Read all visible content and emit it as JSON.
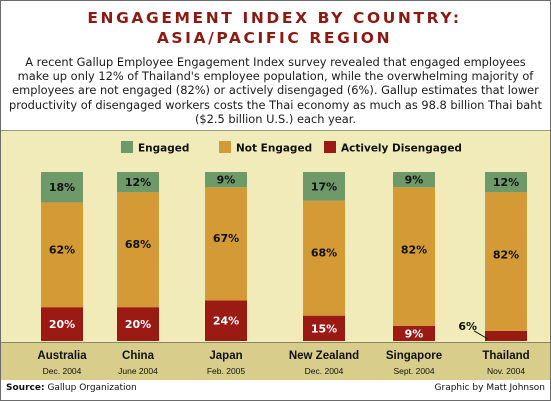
{
  "title_line1": "ENGAGEMENT INDEX BY COUNTRY:",
  "title_line2": "ASIA/PACIFIC REGION",
  "intro": "A recent Gallup Employee Engagement Index survey revealed that engaged employees make up only 12% of Thailand's employee population, while the overwhelming majority of employees are not engaged (82%) or actively disengaged (6%). Gallup estimates that lower productivity of disengaged workers costs the Thai economy as much as 98.8 billion Thai baht ($2.5 billion U.S.) each year.",
  "source_label": "Source:",
  "source_value": "Gallup Organization",
  "credit": "Graphic by Matt Johnson",
  "chart_data": {
    "type": "bar",
    "stacked": true,
    "normalized_to": 100,
    "categories": [
      "Australia",
      "China",
      "Japan",
      "New Zealand",
      "Singapore",
      "Thailand"
    ],
    "category_dates": [
      "Dec. 2004",
      "June 2004",
      "Feb. 2005",
      "Dec. 2004",
      "Sept. 2004",
      "Nov. 2004"
    ],
    "series": [
      {
        "name": "Actively Disengaged",
        "color": "#9c1a14",
        "values": [
          20,
          20,
          24,
          15,
          9,
          6
        ],
        "labels": [
          "20%",
          "20%",
          "24%",
          "15%",
          "9%",
          "6%"
        ]
      },
      {
        "name": "Not Engaged",
        "color": "#d39a36",
        "values": [
          62,
          68,
          67,
          68,
          82,
          82
        ],
        "labels": [
          "62%",
          "68%",
          "67%",
          "68%",
          "82%",
          "82%"
        ]
      },
      {
        "name": "Engaged",
        "color": "#6e9a6a",
        "values": [
          18,
          12,
          9,
          17,
          9,
          12
        ],
        "labels": [
          "18%",
          "12%",
          "9%",
          "17%",
          "9%",
          "12%"
        ]
      }
    ],
    "legend_order": [
      "Engaged",
      "Not Engaged",
      "Actively Disengaged"
    ],
    "legend_position": "top",
    "label_colors": {
      "Engaged": "#111111",
      "Not Engaged": "#111111",
      "Actively Disengaged": "#ffffff"
    },
    "outside_labels": [
      "Thailand:Actively Disengaged"
    ],
    "ylim": [
      0,
      100
    ],
    "grid": false,
    "background": "#f0ebb9",
    "axis_band_color": "#d8cd8a"
  }
}
